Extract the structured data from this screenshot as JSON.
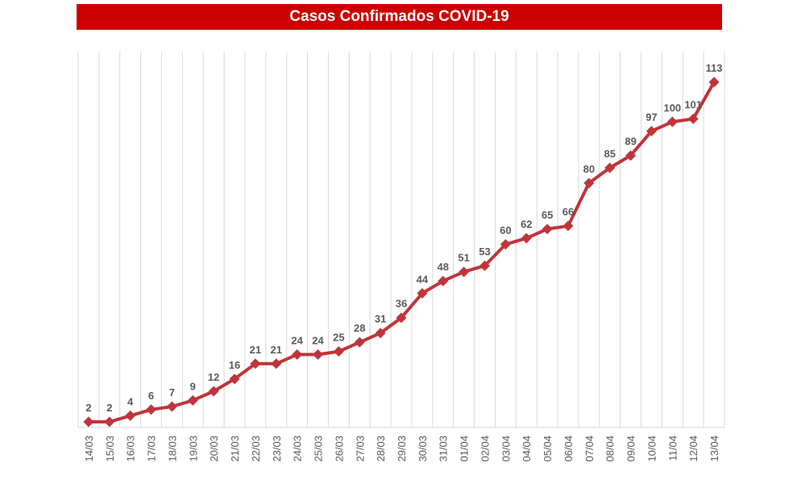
{
  "chart_data": {
    "type": "line",
    "title": "Casos Confirmados COVID-19",
    "xlabel": "",
    "ylabel": "",
    "categories": [
      "14/03",
      "15/03",
      "16/03",
      "17/03",
      "18/03",
      "19/03",
      "20/03",
      "21/03",
      "22/03",
      "23/03",
      "24/03",
      "25/03",
      "26/03",
      "27/03",
      "28/03",
      "29/03",
      "30/03",
      "31/03",
      "01/04",
      "02/04",
      "03/04",
      "04/04",
      "05/04",
      "06/04",
      "07/04",
      "08/04",
      "09/04",
      "10/04",
      "11/04",
      "12/04",
      "13/04"
    ],
    "series": [
      {
        "values": [
          2,
          2,
          4,
          6,
          7,
          9,
          12,
          16,
          21,
          21,
          24,
          24,
          25,
          28,
          31,
          36,
          44,
          48,
          51,
          53,
          60,
          62,
          65,
          66,
          80,
          85,
          89,
          97,
          100,
          101,
          113
        ],
        "color": "#c0343a",
        "marker": "diamond"
      }
    ],
    "ylim": [
      0,
      120
    ],
    "grid": "vertical",
    "legend": "none",
    "data_labels": true
  },
  "colors": {
    "title_background": "#cc0000",
    "title_text": "#ffffff",
    "line": "#c0343a",
    "gridline": "#d9d9d9",
    "label_text": "#595959"
  }
}
